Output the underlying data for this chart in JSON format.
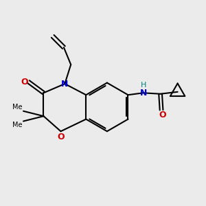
{
  "background_color": "#ebebeb",
  "bond_color": "#000000",
  "N_color": "#0000cc",
  "O_color": "#cc0000",
  "NH_color": "#008080",
  "lw": 1.5,
  "fig_width": 3.0,
  "fig_height": 3.0,
  "dpi": 100,
  "xlim": [
    0,
    10
  ],
  "ylim": [
    0,
    10
  ]
}
